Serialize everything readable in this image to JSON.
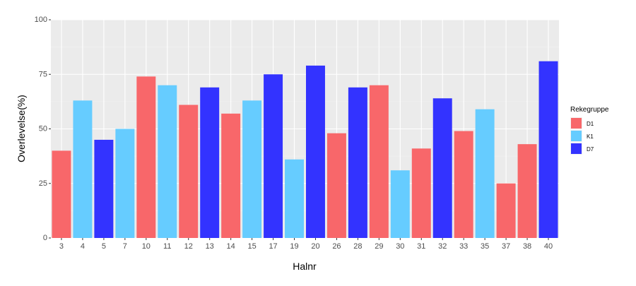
{
  "chart_data": {
    "type": "bar",
    "xlabel": "Halnr",
    "ylabel": "Overlevelse(%)",
    "ylim": [
      0,
      100
    ],
    "yticks": [
      0,
      25,
      50,
      75,
      100
    ],
    "grid": true,
    "legend_position": "right",
    "legend_title": "Rekegruppe",
    "groups": [
      {
        "name": "D1",
        "color": "#F8676A"
      },
      {
        "name": "K1",
        "color": "#66CCFF"
      },
      {
        "name": "D7",
        "color": "#3333FF"
      }
    ],
    "categories": [
      "3",
      "4",
      "5",
      "7",
      "10",
      "11",
      "12",
      "13",
      "14",
      "15",
      "17",
      "19",
      "20",
      "26",
      "28",
      "29",
      "30",
      "31",
      "32",
      "33",
      "35",
      "37",
      "38",
      "40"
    ],
    "values": [
      40,
      63,
      45,
      50,
      74,
      70,
      61,
      69,
      57,
      63,
      75,
      36,
      79,
      48,
      69,
      70,
      31,
      41,
      64,
      49,
      59,
      25,
      43,
      81
    ],
    "bar_groups": [
      "D1",
      "K1",
      "D7",
      "K1",
      "D1",
      "K1",
      "D1",
      "D7",
      "D1",
      "K1",
      "D7",
      "K1",
      "D7",
      "D1",
      "D7",
      "D1",
      "K1",
      "D1",
      "D7",
      "D1",
      "K1",
      "D1",
      "D1",
      "D7"
    ]
  }
}
